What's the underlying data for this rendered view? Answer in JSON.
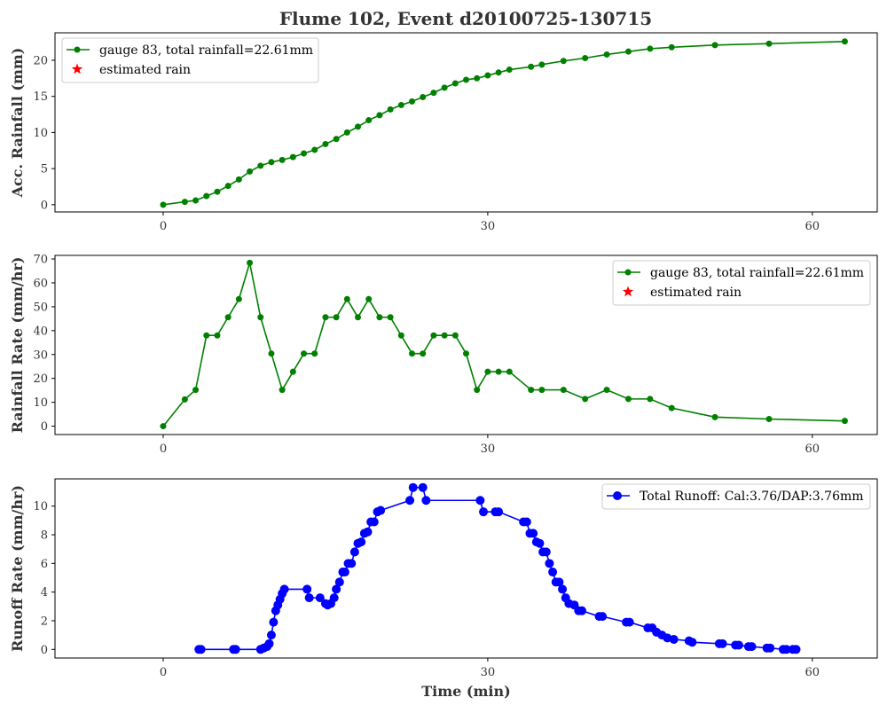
{
  "chart_data": {
    "title": "Flume 102, Event d20100725-130715",
    "shared_xlabel": "Time (min)",
    "panels": [
      {
        "type": "line",
        "ylabel": "Acc. Rainfall (mm)",
        "xlim": [
          -10,
          66
        ],
        "ylim": [
          -1,
          23.8
        ],
        "xticks": [
          0,
          30,
          60
        ],
        "yticks": [
          0,
          5,
          10,
          15,
          20
        ],
        "legend_position": "upper left",
        "series": [
          {
            "name": "gauge 83, total rainfall=22.61mm",
            "color": "#008000",
            "marker": "circle",
            "x": [
              0,
              2,
              3,
              4,
              5,
              6,
              7,
              8,
              9,
              10,
              11,
              12,
              13,
              14,
              15,
              16,
              17,
              18,
              19,
              20,
              21,
              22,
              23,
              24,
              25,
              26,
              27,
              28,
              29,
              30,
              31,
              32,
              34,
              35,
              37,
              39,
              41,
              43,
              45,
              47,
              51,
              56,
              63
            ],
            "y": [
              0,
              0.4,
              0.6,
              1.2,
              1.8,
              2.6,
              3.5,
              4.6,
              5.4,
              5.9,
              6.2,
              6.6,
              7.1,
              7.6,
              8.4,
              9.1,
              10.0,
              10.8,
              11.7,
              12.4,
              13.2,
              13.8,
              14.3,
              14.9,
              15.5,
              16.2,
              16.8,
              17.3,
              17.5,
              17.9,
              18.3,
              18.7,
              19.1,
              19.4,
              19.9,
              20.3,
              20.8,
              21.2,
              21.6,
              21.8,
              22.1,
              22.3,
              22.6
            ]
          },
          {
            "name": "estimated rain",
            "color": "#ff0000",
            "marker": "star",
            "x": [],
            "y": []
          }
        ]
      },
      {
        "type": "line",
        "ylabel": "Rainfall Rate (mm/hr)",
        "xlim": [
          -10,
          66
        ],
        "ylim": [
          -3.5,
          71.5
        ],
        "xticks": [
          0,
          30,
          60
        ],
        "yticks": [
          0,
          10,
          20,
          30,
          40,
          50,
          60,
          70
        ],
        "legend_position": "upper right",
        "series": [
          {
            "name": "gauge 83, total rainfall=22.61mm",
            "color": "#008000",
            "marker": "circle",
            "x": [
              0,
              2,
              3,
              4,
              5,
              6,
              7,
              8,
              9,
              10,
              11,
              12,
              13,
              14,
              15,
              16,
              17,
              18,
              19,
              20,
              21,
              22,
              23,
              24,
              25,
              26,
              27,
              28,
              29,
              30,
              31,
              32,
              34,
              35,
              37,
              39,
              41,
              43,
              45,
              47,
              51,
              56,
              63
            ],
            "y": [
              0,
              11.2,
              15.2,
              38,
              38,
              45.6,
              53.2,
              68.4,
              45.6,
              30.4,
              15.2,
              22.8,
              30.4,
              30.4,
              45.6,
              45.6,
              53.2,
              45.6,
              53.2,
              45.6,
              45.6,
              38,
              30.4,
              30.4,
              38,
              38,
              38,
              30.4,
              15.2,
              22.8,
              22.8,
              22.8,
              15.2,
              15.2,
              15.2,
              11.4,
              15.2,
              11.4,
              11.4,
              7.6,
              3.8,
              3.0,
              2.2
            ]
          },
          {
            "name": "estimated rain",
            "color": "#ff0000",
            "marker": "star",
            "x": [],
            "y": []
          }
        ]
      },
      {
        "type": "line",
        "ylabel": "Runoff Rate (mm/hr)",
        "xlabel": "Time (min)",
        "xlim": [
          -10,
          66
        ],
        "ylim": [
          -0.6,
          11.9
        ],
        "xticks": [
          0,
          30,
          60
        ],
        "yticks": [
          0,
          2,
          4,
          6,
          8,
          10
        ],
        "legend_position": "upper right",
        "series": [
          {
            "name": "Total Runoff: Cal:3.76/DAP:3.76mm",
            "color": "#0000ff",
            "marker": "circle",
            "x": [
              3.3,
              3.5,
              6.5,
              6.7,
              9.0,
              9.3,
              9.6,
              9.8,
              10.0,
              10.2,
              10.4,
              10.6,
              10.8,
              11.0,
              11.2,
              13.3,
              13.5,
              14.5,
              15.0,
              15.2,
              15.5,
              15.8,
              16.0,
              16.3,
              16.6,
              16.8,
              17.1,
              17.4,
              17.7,
              18.0,
              18.3,
              18.6,
              18.9,
              19.2,
              19.5,
              19.8,
              20.1,
              22.8,
              23.1,
              24.0,
              24.3,
              29.3,
              29.6,
              30.7,
              31.0,
              33.3,
              33.6,
              33.9,
              34.2,
              34.5,
              34.8,
              35.1,
              35.4,
              35.7,
              36.0,
              36.3,
              36.6,
              36.9,
              37.2,
              37.5,
              38.0,
              38.4,
              38.7,
              40.3,
              40.6,
              42.8,
              43.1,
              44.8,
              45.2,
              45.6,
              46.1,
              46.6,
              47.2,
              48.6,
              48.9,
              51.4,
              51.7,
              52.9,
              53.2,
              54.1,
              54.4,
              55.8,
              56.1,
              57.3,
              57.6,
              58.2,
              58.5
            ],
            "y": [
              0,
              0,
              0,
              0,
              0,
              0.1,
              0.2,
              0.4,
              1.0,
              1.9,
              2.7,
              3.1,
              3.5,
              3.9,
              4.2,
              4.2,
              3.6,
              3.6,
              3.2,
              3.1,
              3.2,
              3.6,
              4.2,
              4.7,
              5.4,
              5.4,
              6.0,
              6.0,
              6.8,
              7.4,
              7.5,
              8.1,
              8.2,
              8.9,
              8.9,
              9.6,
              9.7,
              10.4,
              11.3,
              11.3,
              10.4,
              10.4,
              9.6,
              9.6,
              9.6,
              8.9,
              8.9,
              8.1,
              8.1,
              7.5,
              7.4,
              6.8,
              6.8,
              6.0,
              5.4,
              4.7,
              4.7,
              4.2,
              3.6,
              3.2,
              3.1,
              2.7,
              2.7,
              2.3,
              2.3,
              1.9,
              1.9,
              1.5,
              1.5,
              1.2,
              1.0,
              0.8,
              0.7,
              0.6,
              0.5,
              0.4,
              0.4,
              0.3,
              0.3,
              0.2,
              0.2,
              0.1,
              0.1,
              0,
              0,
              0,
              0
            ]
          }
        ]
      }
    ]
  }
}
